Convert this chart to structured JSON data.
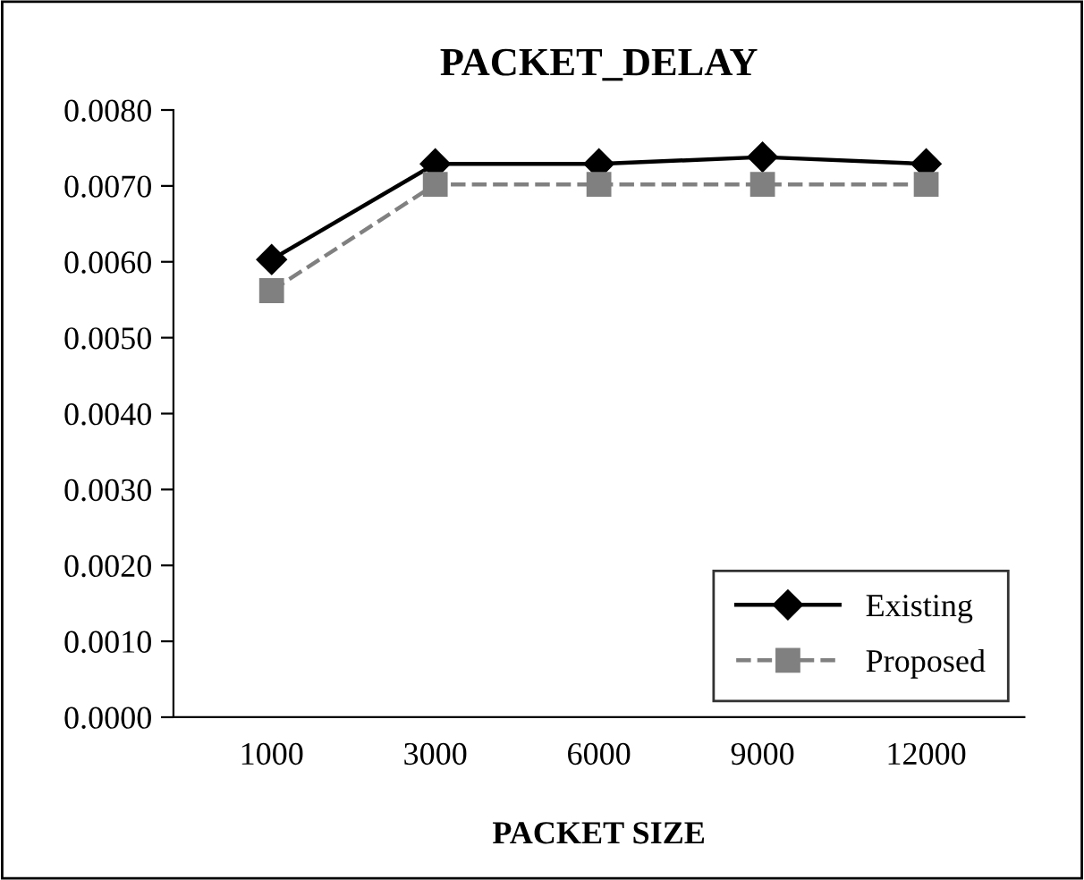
{
  "chart_data": {
    "type": "line",
    "title": "PACKET_DELAY",
    "xlabel": "PACKET SIZE",
    "categories": [
      "1000",
      "3000",
      "6000",
      "9000",
      "12000"
    ],
    "series": [
      {
        "name": "Existing",
        "color": "#000000",
        "marker": "diamond",
        "line_style": "solid",
        "values": [
          0.00603,
          0.00729,
          0.00729,
          0.00738,
          0.00729
        ]
      },
      {
        "name": "Proposed",
        "color": "#808080",
        "marker": "square",
        "line_style": "dashed",
        "values": [
          0.00562,
          0.00702,
          0.00702,
          0.00702,
          0.00702
        ]
      }
    ],
    "ylim": [
      0,
      0.008
    ],
    "yticks": [
      {
        "value": 0,
        "label": "0.0000"
      },
      {
        "value": 0.001,
        "label": "0.0010"
      },
      {
        "value": 0.002,
        "label": "0.0020"
      },
      {
        "value": 0.003,
        "label": "0.0030"
      },
      {
        "value": 0.004,
        "label": "0.0040"
      },
      {
        "value": 0.005,
        "label": "0.0050"
      },
      {
        "value": 0.006,
        "label": "0.0060"
      },
      {
        "value": 0.007,
        "label": "0.0070"
      },
      {
        "value": 0.008,
        "label": "0.0080"
      }
    ],
    "grid": false,
    "legend": "bottom right"
  }
}
